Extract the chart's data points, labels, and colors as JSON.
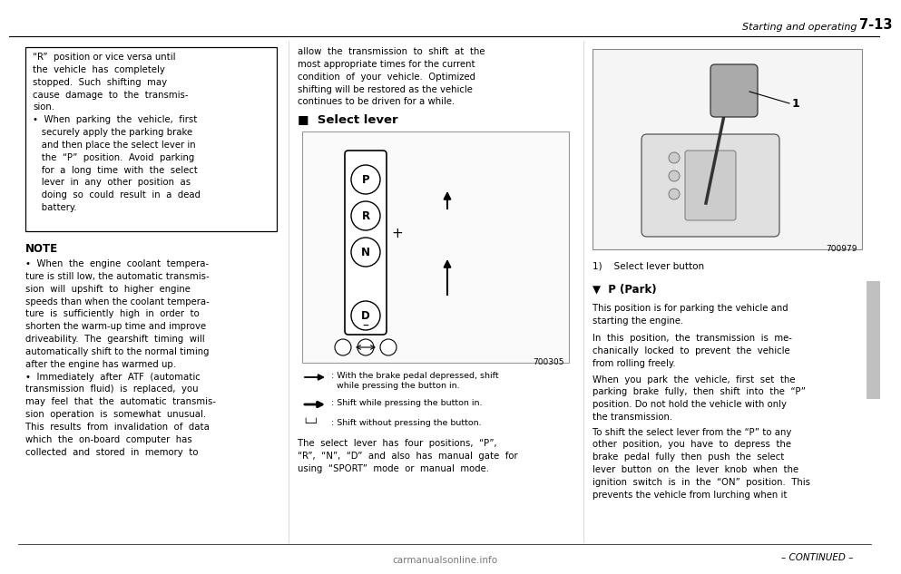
{
  "bg_color": "#ffffff",
  "page_width": 9.6,
  "page_height": 6.11,
  "header_text": "Starting and operating",
  "header_page": "7-13",
  "continued_text": "– CONTINUED –",
  "watermark": "carmanualsonline.info",
  "col1_box_text": "“R”  position or vice versa until\nthe  vehicle  has  completely\nstopped.  Such  shifting  may\ncause  damage  to  the  transmis-\nsion.\n•  When  parking  the  vehicle,  first\n   securely apply the parking brake\n   and then place the select lever in\n   the  “P”  position.  Avoid  parking\n   for  a  long  time  with  the  select\n   lever  in  any  other  position  as\n   doing  so  could  result  in  a  dead\n   battery.",
  "col1_note_title": "NOTE",
  "col1_note_body": "•  When  the  engine  coolant  tempera-\nture is still low, the automatic transmis-\nsion  will  upshift  to  higher  engine\nspeeds than when the coolant tempera-\nture  is  sufficiently  high  in  order  to\nshorten the warm-up time and improve\ndriveability.  The  gearshift  timing  will\nautomatically shift to the normal timing\nafter the engine has warmed up.\n•  Immediately  after  ATF  (automatic\ntransmission  fluid)  is  replaced,  you\nmay  feel  that  the  automatic  transmis-\nsion  operation  is  somewhat  unusual.\nThis  results  from  invalidation  of  data\nwhich  the  on-board  computer  has\ncollected  and  stored  in  memory  to",
  "col2_intro": "allow  the  transmission  to  shift  at  the\nmost appropriate times for the current\ncondition  of  your  vehicle.  Optimized\nshifting will be restored as the vehicle\ncontinues to be driven for a while.",
  "col2_section_title": "■  Select lever",
  "col2_legend1": ": With the brake pedal depressed, shift\n  while pressing the button in.",
  "col2_legend2": ": Shift while pressing the button in.",
  "col2_legend3": ": Shift without pressing the button.",
  "col2_body": "The  select  lever  has  four  positions,  “P”,\n“R”,  “N”,  “D”  and  also  has  manual  gate  for\nusing  “SPORT”  mode  or  manual  mode.",
  "col3_caption": "1)    Select lever button",
  "col3_subsection": "▼  P (Park)",
  "col3_p1": "This position is for parking the vehicle and\nstarting the engine.",
  "col3_p2": "In  this  position,  the  transmission  is  me-\nchanically  locked  to  prevent  the  vehicle\nfrom rolling freely.",
  "col3_p3": "When  you  park  the  vehicle,  first  set  the\nparking  brake  fully,  then  shift  into  the  “P”\nposition. Do not hold the vehicle with only\nthe transmission.",
  "col3_p4": "To shift the select lever from the “P” to any\nother  position,  you  have  to  depress  the\nbrake  pedal  fully  then  push  the  select\nlever  button  on  the  lever  knob  when  the\nignition  switch  is  in  the  “ON”  position.  This\nprevents the vehicle from lurching when it",
  "sidebar_color": "#c0c0c0",
  "diagram_code": "700305",
  "photo_code": "700979"
}
